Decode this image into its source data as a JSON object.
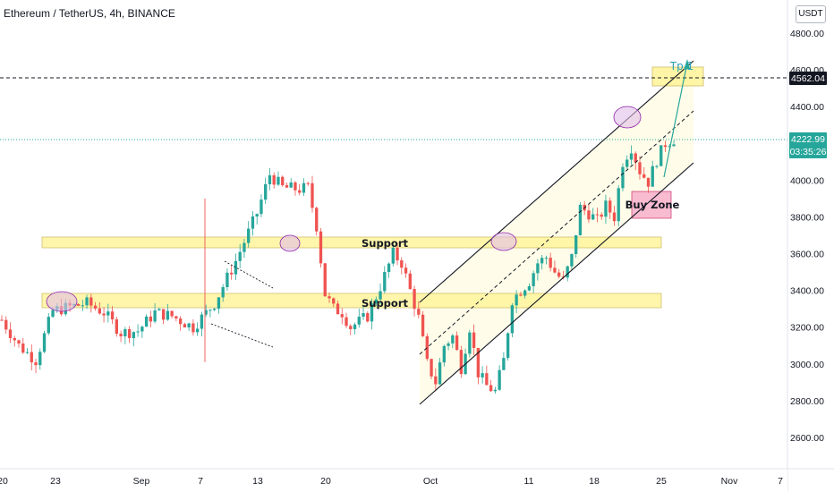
{
  "header": {
    "title": "Ethereum / TetherUS, 4h, BINANCE",
    "currency": "USDT"
  },
  "price_tags": {
    "target": "4562.04",
    "last": "4222.99",
    "countdown": "03:35:26"
  },
  "annotations": {
    "support_1": "Support",
    "support_2": "Support",
    "buy_zone": "Buy Zone",
    "tp": "Tp 1"
  },
  "colors": {
    "up": "#26a69a",
    "down": "#ef5350",
    "support_zone": "#fff59d",
    "channel_fill": "#fffde7",
    "buy_zone": "#f8bbd0",
    "highlight_circle": "#e1bee7",
    "last_price": "#26a69a"
  },
  "chart_data": {
    "type": "candlestick",
    "title": "Ethereum / TetherUS, 4h, BINANCE",
    "y_axis": {
      "unit": "USDT",
      "ylim": [
        2500,
        4950
      ],
      "ticks": [
        2600,
        2800,
        3000,
        3200,
        3400,
        3600,
        3800,
        4000,
        4200,
        4400,
        4600,
        4800
      ]
    },
    "x_axis": {
      "ticks": [
        "20",
        "23",
        "Sep",
        "7",
        "13",
        "20",
        "Oct",
        "11",
        "18",
        "25",
        "Nov",
        "7"
      ]
    },
    "last_price": 4222.99,
    "target_price": 4562.04,
    "price_path": [
      [
        0,
        3240
      ],
      [
        4,
        3100
      ],
      [
        8,
        3020
      ],
      [
        12,
        3290
      ],
      [
        16,
        3310
      ],
      [
        20,
        3330
      ],
      [
        24,
        3280
      ],
      [
        28,
        3170
      ],
      [
        32,
        3180
      ],
      [
        36,
        3280
      ],
      [
        40,
        3260
      ],
      [
        45,
        3200
      ],
      [
        50,
        3330
      ],
      [
        55,
        3560
      ],
      [
        60,
        3820
      ],
      [
        63,
        4030
      ],
      [
        66,
        3960
      ],
      [
        70,
        3950
      ],
      [
        72,
        3960
      ],
      [
        74,
        3750
      ],
      [
        76,
        3380
      ],
      [
        78,
        3300
      ],
      [
        80,
        3280
      ],
      [
        82,
        3200
      ],
      [
        86,
        3260
      ],
      [
        89,
        3420
      ],
      [
        92,
        3600
      ],
      [
        94,
        3550
      ],
      [
        96,
        3400
      ],
      [
        98,
        3250
      ],
      [
        100,
        3000
      ],
      [
        102,
        2900
      ],
      [
        104,
        3100
      ],
      [
        106,
        3150
      ],
      [
        108,
        2980
      ],
      [
        110,
        3200
      ],
      [
        112,
        2950
      ],
      [
        114,
        2880
      ],
      [
        116,
        2850
      ],
      [
        118,
        3020
      ],
      [
        120,
        3350
      ],
      [
        122,
        3400
      ],
      [
        124,
        3450
      ],
      [
        126,
        3550
      ],
      [
        128,
        3580
      ],
      [
        130,
        3500
      ],
      [
        132,
        3450
      ],
      [
        134,
        3580
      ],
      [
        136,
        3850
      ],
      [
        138,
        3820
      ],
      [
        140,
        3780
      ],
      [
        142,
        3860
      ],
      [
        144,
        3800
      ],
      [
        146,
        4100
      ],
      [
        148,
        4180
      ],
      [
        150,
        4050
      ],
      [
        152,
        3990
      ],
      [
        154,
        4110
      ],
      [
        156,
        4200
      ],
      [
        158,
        4222.99
      ]
    ],
    "support_zones": [
      {
        "name": "Support",
        "from": 3640,
        "to": 3690
      },
      {
        "name": "Support",
        "from": 3310,
        "to": 3390
      }
    ],
    "buy_zone": {
      "name": "Buy Zone",
      "from": 3780,
      "to": 3930
    },
    "target": {
      "name": "Tp 1",
      "price": 4562.04
    }
  }
}
